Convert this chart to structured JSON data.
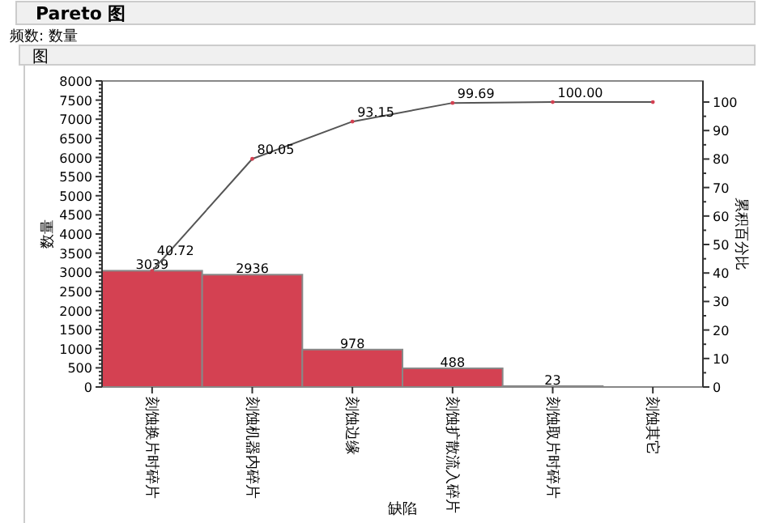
{
  "chart_data": {
    "type": "bar",
    "title": "Pareto 图",
    "subtitle": "频数: 数量",
    "annotations": [
      "图"
    ],
    "xlabel": "缺陷",
    "ylabel": "数量",
    "y2label": "累积百分比",
    "categories": [
      "刻蚀换片时碎片",
      "刻蚀机器内碎片",
      "刻蚀边缘",
      "刻蚀扩散流入碎片",
      "刻蚀取片时碎片",
      "刻蚀其它"
    ],
    "series": [
      {
        "color": "#d44152",
        "values": [
          3039,
          2936,
          978,
          488,
          23,
          0
        ],
        "value_labels": [
          "3039",
          "2936",
          "978",
          "488",
          "23",
          null
        ]
      },
      {
        "type": "line",
        "axis": "y2",
        "color": "#555555",
        "values": [
          40.72,
          80.05,
          93.15,
          99.69,
          100.0,
          100.0
        ],
        "value_labels": [
          "40.72",
          "80.05",
          "93.15",
          "99.69",
          "100.00",
          null
        ]
      }
    ],
    "ylim": [
      0,
      8000
    ],
    "yticks": [
      0,
      500,
      1000,
      1500,
      2000,
      2500,
      3000,
      3500,
      4000,
      4500,
      5000,
      5500,
      6000,
      6500,
      7000,
      7500,
      8000
    ],
    "y2lim": [
      0,
      107.4
    ],
    "y2ticks": [
      0,
      10,
      20,
      30,
      40,
      50,
      60,
      70,
      80,
      90,
      100
    ]
  }
}
